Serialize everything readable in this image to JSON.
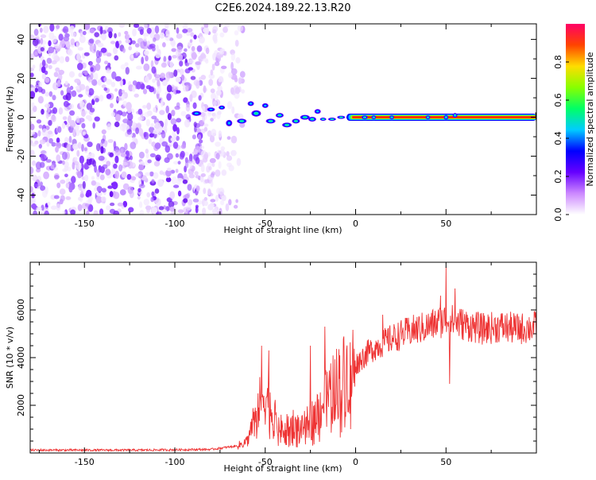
{
  "title": "C2E6.2024.189.22.13.R20",
  "chart_data": [
    {
      "type": "heatmap",
      "xlabel": "Height of straight line (km)",
      "ylabel": "Frequency (Hz)",
      "xlim": [
        -180,
        100
      ],
      "ylim": [
        -50,
        48
      ],
      "xticks": [
        -150,
        -100,
        -50,
        0,
        50
      ],
      "yticks": [
        -40,
        -20,
        0,
        20,
        40
      ],
      "colorbar": {
        "label": "Normalized spectral amplitude",
        "range": [
          0,
          1
        ],
        "ticks": [
          "0.0",
          "0.2",
          "0.4",
          "0.6",
          "0.8"
        ],
        "colors": [
          "#ffffff",
          "#cc88ff",
          "#6600ff",
          "#0000ff",
          "#00ccff",
          "#00ff66",
          "#88ff00",
          "#ffdd00",
          "#ff4400",
          "#ff0066"
        ]
      },
      "features": {
        "noise_region_x": [
          -180,
          -70
        ],
        "signal_track": {
          "x_start": -90,
          "x_end": 100,
          "frequency": 0
        }
      }
    },
    {
      "type": "line",
      "xlabel": "Height of straight line (km)",
      "ylabel": "SNR (10 * v/v)",
      "xlim": [
        -180,
        100
      ],
      "ylim": [
        0,
        8000
      ],
      "xticks": [
        -150,
        -100,
        -50,
        0,
        50
      ],
      "yticks": [
        2000,
        4000,
        6000
      ],
      "series_color": "#ee3333",
      "envelope": [
        [
          -180,
          120
        ],
        [
          -120,
          120
        ],
        [
          -80,
          150
        ],
        [
          -65,
          300
        ],
        [
          -60,
          500
        ],
        [
          -55,
          1800
        ],
        [
          -50,
          2500
        ],
        [
          -45,
          1500
        ],
        [
          -40,
          900
        ],
        [
          -35,
          1300
        ],
        [
          -30,
          1000
        ],
        [
          -25,
          1400
        ],
        [
          -20,
          1900
        ],
        [
          -15,
          2400
        ],
        [
          -10,
          3000
        ],
        [
          -5,
          3400
        ],
        [
          0,
          3700
        ],
        [
          5,
          4100
        ],
        [
          10,
          4400
        ],
        [
          20,
          4800
        ],
        [
          30,
          5100
        ],
        [
          40,
          5300
        ],
        [
          50,
          5600
        ],
        [
          60,
          5400
        ],
        [
          70,
          5200
        ],
        [
          80,
          5300
        ],
        [
          90,
          5200
        ],
        [
          100,
          5300
        ]
      ],
      "spikes": [
        [
          -52,
          4500
        ],
        [
          -48,
          4300
        ],
        [
          -25,
          4500
        ],
        [
          -17,
          5300
        ],
        [
          15,
          5800
        ],
        [
          47,
          6600
        ],
        [
          50,
          7800
        ],
        [
          52,
          2900
        ],
        [
          55,
          6900
        ]
      ]
    }
  ]
}
